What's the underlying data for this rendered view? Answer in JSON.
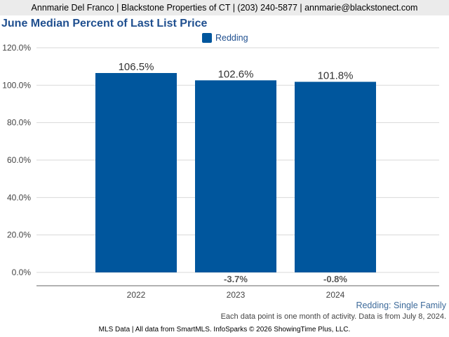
{
  "header": {
    "contact": "Annmarie Del Franco | Blackstone Properties of CT | (203) 240-5877 | annmarie@blackstonect.com"
  },
  "chart_data": {
    "type": "bar",
    "title": "June Median Percent of Last List Price",
    "categories": [
      "2022",
      "2023",
      "2024"
    ],
    "series": [
      {
        "name": "Redding",
        "values": [
          106.5,
          102.6,
          101.8
        ],
        "color": "#00569d"
      }
    ],
    "value_labels": [
      "106.5%",
      "102.6%",
      "101.8%"
    ],
    "change_labels": [
      "",
      "-3.7%",
      "-0.8%"
    ],
    "ylim": [
      0,
      120
    ],
    "yticks": [
      0,
      20,
      40,
      60,
      80,
      100,
      120
    ],
    "ytick_labels": [
      "0.0%",
      "20.0%",
      "40.0%",
      "60.0%",
      "80.0%",
      "100.0%",
      "120.0%"
    ],
    "grid": true,
    "legend": "top-center"
  },
  "subtitle": "Redding: Single Family",
  "note": "Each data point is one month of activity. Data is from July 8, 2024.",
  "footer": "MLS Data | All data from SmartMLS. InfoSparks © 2026 ShowingTime Plus, LLC."
}
